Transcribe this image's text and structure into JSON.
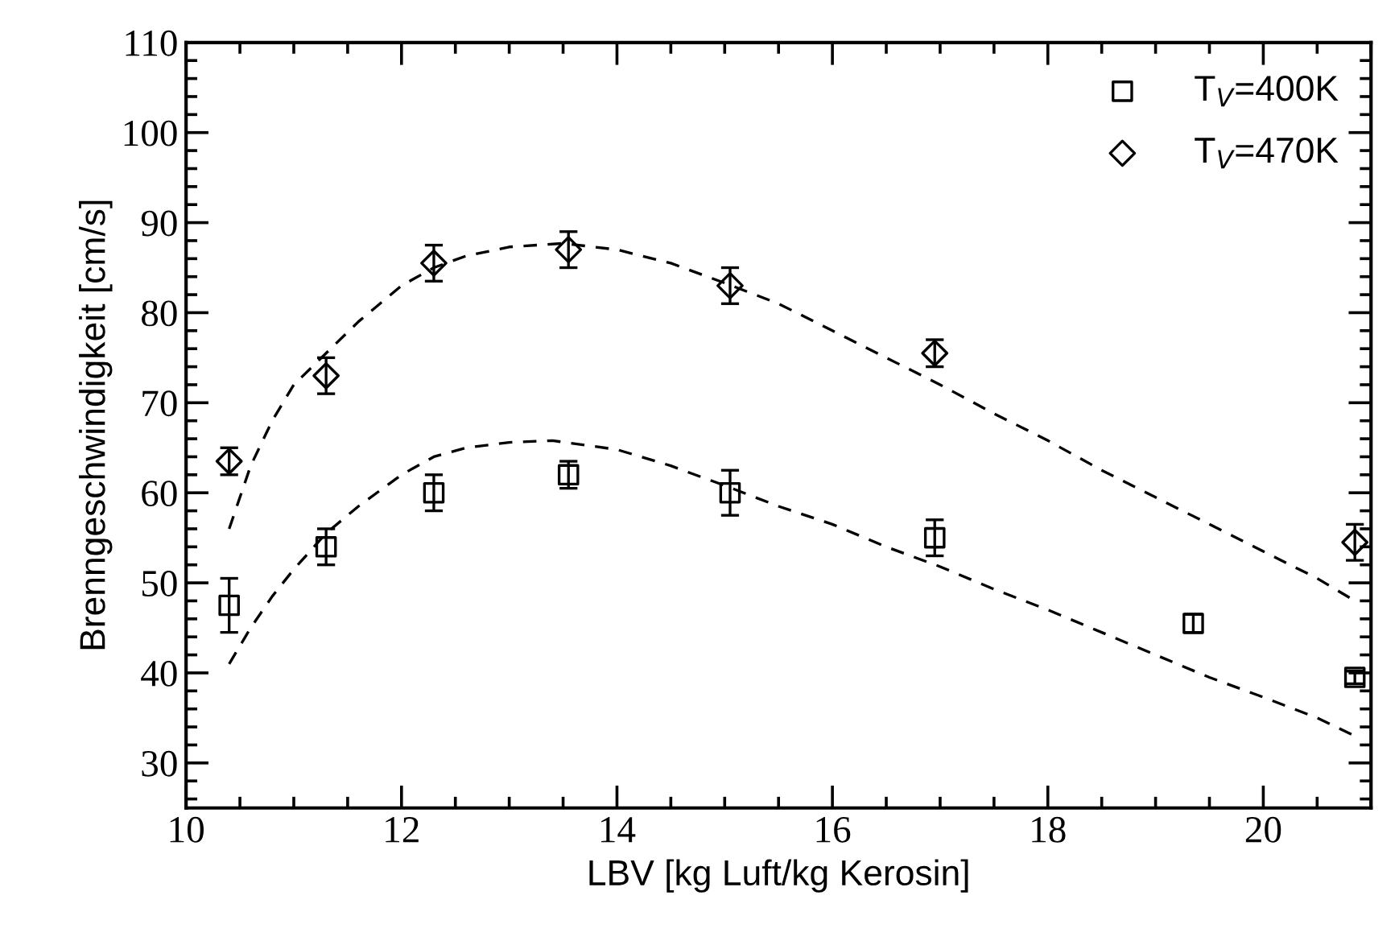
{
  "chart_data": {
    "type": "scatter",
    "xlabel": "LBV [kg Luft/kg Kerosin]",
    "ylabel": "Brenngeschwindigkeit [cm/s]",
    "xlim": [
      10,
      21
    ],
    "xticks": [
      10,
      12,
      14,
      16,
      18,
      20
    ],
    "ylim": [
      25,
      110
    ],
    "yticks": [
      30,
      40,
      50,
      60,
      70,
      80,
      90,
      100,
      110
    ],
    "grid": false,
    "legend": "top right",
    "series": [
      {
        "name": "T$_{V}$=400K",
        "color": "#000000",
        "marker": "square",
        "x": [
          10.4,
          11.3,
          12.3,
          13.55,
          15.05,
          16.95,
          19.35,
          20.85
        ],
        "values": [
          47.5,
          54,
          60,
          62,
          60,
          55,
          45.5,
          39.5
        ],
        "errors": [
          3,
          2,
          2,
          1.5,
          2.5,
          2,
          1,
          0.7
        ]
      },
      {
        "name": "T$_{V}$=470K",
        "color": "#000000",
        "marker": "diamond",
        "x": [
          10.4,
          11.3,
          12.3,
          13.55,
          15.05,
          16.95,
          20.85
        ],
        "values": [
          63.5,
          73,
          85.5,
          87,
          83,
          75.5,
          54.5
        ],
        "errors": [
          1.5,
          2,
          2,
          2,
          2,
          1.5,
          2
        ]
      },
      {
        "type": "line",
        "color": "#000000",
        "line_style": "dashed",
        "marker": "none",
        "x": [
          10.4,
          10.6,
          10.8,
          11.0,
          11.3,
          11.6,
          12.0,
          12.3,
          12.6,
          13.0,
          13.4,
          14.0,
          14.5,
          15.0,
          15.5,
          16.0,
          16.5,
          17.0,
          17.5,
          18.0,
          18.5,
          19.0,
          19.5,
          20.0,
          20.5,
          20.85
        ],
        "values": [
          41,
          45,
          48.5,
          51.5,
          55.5,
          58.5,
          62,
          64,
          65,
          65.6,
          65.8,
          64.8,
          63,
          60.8,
          58.5,
          56.5,
          54,
          51.8,
          49.3,
          47,
          44.5,
          42,
          39.5,
          37.3,
          35,
          33
        ]
      },
      {
        "type": "line",
        "color": "#000000",
        "line_style": "dashed",
        "marker": "none",
        "x": [
          10.4,
          10.6,
          10.8,
          11.0,
          11.3,
          11.6,
          12.0,
          12.3,
          12.6,
          13.0,
          13.5,
          14.0,
          14.5,
          15.0,
          15.5,
          16.0,
          16.5,
          17.0,
          17.5,
          18.0,
          18.5,
          19.0,
          19.5,
          20.0,
          20.5,
          20.85
        ],
        "values": [
          56,
          63,
          68,
          72,
          75.5,
          79,
          83,
          85,
          86.3,
          87.3,
          87.7,
          87,
          85.5,
          83.3,
          81,
          78,
          75,
          72,
          68.8,
          65.8,
          62.5,
          59.5,
          56.5,
          53.5,
          50.5,
          48
        ]
      }
    ]
  }
}
